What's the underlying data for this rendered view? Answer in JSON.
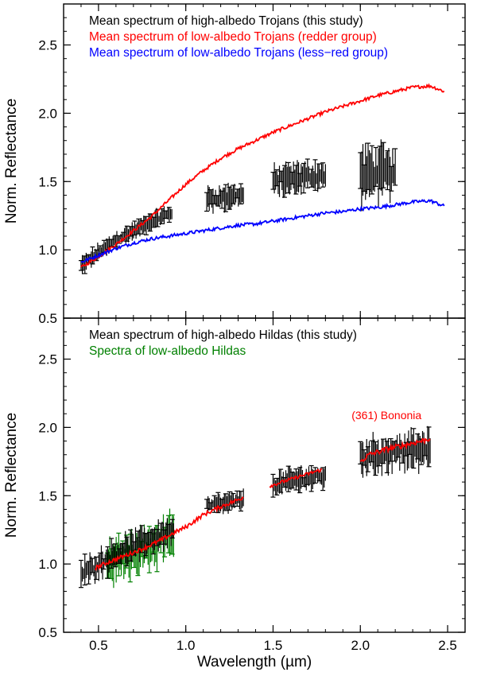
{
  "figure": {
    "xlabel": "Wavelength (µm)",
    "ylabel": "Norm. Reflectance"
  },
  "chart_data": [
    {
      "type": "line",
      "xlabel": "",
      "ylabel": "Norm. Reflectance",
      "xlim": [
        0.3,
        2.6
      ],
      "ylim": [
        0.5,
        2.8
      ],
      "x_ticks": [
        0.5,
        1.0,
        1.5,
        2.0,
        2.5
      ],
      "x_tick_labels": [
        "",
        "",
        "",
        "",
        ""
      ],
      "y_ticks": [
        0.5,
        1.0,
        1.5,
        2.0,
        2.5
      ],
      "y_tick_labels": [
        "0.5",
        "1.0",
        "1.5",
        "2.0",
        "2.5"
      ],
      "grid": false,
      "legend": {
        "placement": "top-left",
        "entries": [
          {
            "label": "Mean spectrum of high-albedo Trojans (this study)",
            "color": "#000000"
          },
          {
            "label": "Mean spectrum of low-albedo Trojans (redder group)",
            "color": "#ff0000"
          },
          {
            "label": "Mean spectrum of low-albedo Trojans (less−red group)",
            "color": "#0000ff"
          }
        ]
      },
      "series": [
        {
          "kind": "errorbar-band",
          "color": "#000000",
          "segments": [
            {
              "x": [
                0.4,
                0.5,
                0.6,
                0.7,
                0.8,
                0.92
              ],
              "y": [
                0.88,
                0.98,
                1.07,
                1.14,
                1.21,
                1.27
              ],
              "err": 0.07
            },
            {
              "x": [
                1.12,
                1.2,
                1.3,
                1.33
              ],
              "y": [
                1.37,
                1.38,
                1.4,
                1.4
              ],
              "err": 0.1
            },
            {
              "x": [
                1.5,
                1.6,
                1.7,
                1.8
              ],
              "y": [
                1.5,
                1.52,
                1.54,
                1.54
              ],
              "err": 0.12
            },
            {
              "x": [
                2.0,
                2.1,
                2.2
              ],
              "y": [
                1.55,
                1.57,
                1.56
              ],
              "err": 0.22
            }
          ]
        },
        {
          "kind": "spectrum",
          "color": "#ff0000",
          "x": [
            0.4,
            0.5,
            0.6,
            0.7,
            0.8,
            0.9,
            1.0,
            1.1,
            1.2,
            1.3,
            1.4,
            1.5,
            1.6,
            1.7,
            1.8,
            1.9,
            2.0,
            2.1,
            2.2,
            2.3,
            2.4,
            2.48
          ],
          "y": [
            0.87,
            0.95,
            1.04,
            1.14,
            1.24,
            1.36,
            1.48,
            1.58,
            1.67,
            1.74,
            1.8,
            1.86,
            1.91,
            1.96,
            2.01,
            2.05,
            2.09,
            2.13,
            2.16,
            2.19,
            2.2,
            2.16
          ],
          "noise": 0.012
        },
        {
          "kind": "spectrum",
          "color": "#0000ff",
          "x": [
            0.4,
            0.5,
            0.6,
            0.7,
            0.8,
            0.9,
            1.0,
            1.1,
            1.2,
            1.3,
            1.4,
            1.5,
            1.6,
            1.7,
            1.8,
            1.9,
            2.0,
            2.1,
            2.2,
            2.3,
            2.4,
            2.48
          ],
          "y": [
            0.91,
            0.96,
            1.01,
            1.05,
            1.08,
            1.1,
            1.12,
            1.14,
            1.16,
            1.18,
            1.19,
            1.21,
            1.23,
            1.25,
            1.27,
            1.28,
            1.3,
            1.31,
            1.33,
            1.35,
            1.36,
            1.32
          ],
          "noise": 0.012
        }
      ]
    },
    {
      "type": "line",
      "xlabel": "Wavelength (µm)",
      "ylabel": "Norm. Reflectance",
      "xlim": [
        0.3,
        2.6
      ],
      "ylim": [
        0.5,
        2.8
      ],
      "x_ticks": [
        0.5,
        1.0,
        1.5,
        2.0,
        2.5
      ],
      "x_tick_labels": [
        "0.5",
        "1.0",
        "1.5",
        "2.0",
        "2.5"
      ],
      "y_ticks": [
        0.5,
        1.0,
        1.5,
        2.0,
        2.5
      ],
      "y_tick_labels": [
        "0.5",
        "1.0",
        "1.5",
        "2.0",
        "2.5"
      ],
      "grid": false,
      "legend": {
        "placement": "top-left",
        "entries": [
          {
            "label": "Mean spectrum of high-albedo Hildas (this study)",
            "color": "#000000"
          },
          {
            "label": "Spectra of low-albedo Hildas",
            "color": "#008000"
          }
        ]
      },
      "annotations": [
        {
          "text": "(361) Bononia",
          "x": 2.15,
          "y": 2.06,
          "color": "#ff0000"
        }
      ],
      "series": [
        {
          "kind": "errorbar-band",
          "color": "#008000",
          "segments": [
            {
              "x": [
                0.55,
                0.65,
                0.75,
                0.85,
                0.93
              ],
              "y": [
                1.0,
                1.05,
                1.1,
                1.16,
                1.22
              ],
              "err": 0.18
            }
          ]
        },
        {
          "kind": "errorbar-band",
          "color": "#000000",
          "segments": [
            {
              "x": [
                0.4,
                0.5,
                0.6,
                0.7,
                0.8,
                0.93
              ],
              "y": [
                0.92,
                1.0,
                1.07,
                1.13,
                1.18,
                1.25
              ],
              "err": 0.12
            },
            {
              "x": [
                1.12,
                1.2,
                1.3,
                1.33
              ],
              "y": [
                1.42,
                1.44,
                1.46,
                1.47
              ],
              "err": 0.08
            },
            {
              "x": [
                1.5,
                1.6,
                1.7,
                1.8
              ],
              "y": [
                1.58,
                1.61,
                1.63,
                1.64
              ],
              "err": 0.1
            },
            {
              "x": [
                2.0,
                2.1,
                2.2,
                2.3,
                2.4
              ],
              "y": [
                1.78,
                1.8,
                1.82,
                1.83,
                1.84
              ],
              "err": 0.15
            }
          ]
        },
        {
          "kind": "spectrum",
          "color": "#ff0000",
          "x": [
            0.48,
            0.55,
            0.65,
            0.75,
            0.85,
            0.95,
            1.0,
            1.1,
            1.2,
            1.3,
            1.33
          ],
          "y": [
            0.97,
            1.01,
            1.06,
            1.11,
            1.17,
            1.24,
            1.27,
            1.36,
            1.42,
            1.47,
            1.49
          ],
          "noise": 0.015
        },
        {
          "kind": "spectrum",
          "color": "#ff0000",
          "x": [
            1.48,
            1.55,
            1.65,
            1.75,
            1.78
          ],
          "y": [
            1.57,
            1.6,
            1.64,
            1.68,
            1.69
          ],
          "noise": 0.012
        },
        {
          "kind": "spectrum",
          "color": "#ff0000",
          "x": [
            2.0,
            2.05,
            2.15,
            2.25,
            2.35,
            2.4
          ],
          "y": [
            1.75,
            1.8,
            1.84,
            1.87,
            1.9,
            1.92
          ],
          "noise": 0.02
        }
      ]
    }
  ]
}
